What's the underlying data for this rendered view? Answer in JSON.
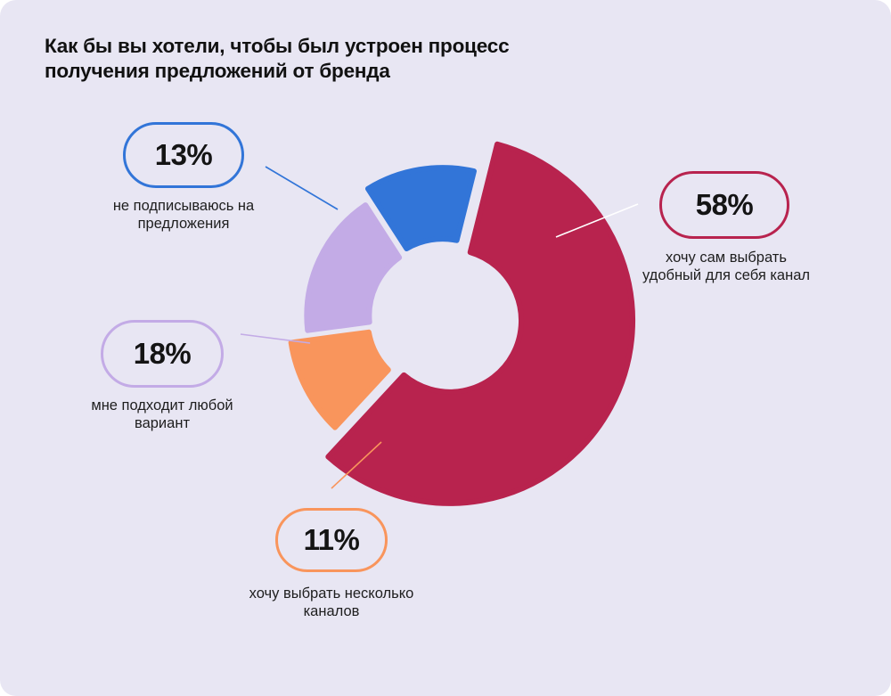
{
  "title": "Как бы вы хотели, чтобы был устроен процесс получения предложений от бренда",
  "chart_data": {
    "type": "pie",
    "title": "Как бы вы хотели, чтобы был устроен процесс получения предложений от бренда",
    "slices": [
      {
        "label": "хочу сам выбрать удобный для себя канал",
        "value": 58,
        "display": "58%",
        "color": "#b8234e"
      },
      {
        "label": "хочу выбрать несколько каналов",
        "value": 11,
        "display": "11%",
        "color": "#f9955c"
      },
      {
        "label": "мне подходит любой вариант",
        "value": 18,
        "display": "18%",
        "color": "#c3abe6"
      },
      {
        "label": "не подписываюсь на предложения",
        "value": 13,
        "display": "13%",
        "color": "#3275d8"
      }
    ]
  }
}
